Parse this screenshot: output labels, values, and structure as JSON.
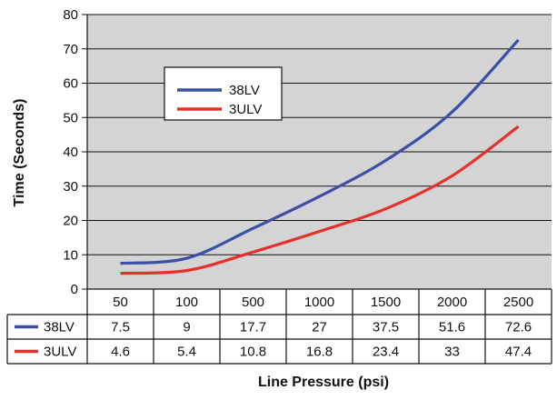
{
  "chart_data": {
    "type": "line",
    "categories": [
      "50",
      "100",
      "500",
      "1000",
      "1500",
      "2000",
      "2500"
    ],
    "series": [
      {
        "name": "38LV",
        "color": "#3a4fa8",
        "values": [
          7.5,
          9,
          17.7,
          27,
          37.5,
          51.6,
          72.6
        ]
      },
      {
        "name": "3ULV",
        "color": "#e8302a",
        "values": [
          4.6,
          5.4,
          10.8,
          16.8,
          23.4,
          33,
          47.4
        ]
      }
    ],
    "title": "",
    "xlabel": "Line Pressure (psi)",
    "ylabel": "Time (Seconds)",
    "ylim": [
      0,
      80
    ],
    "yticks": [
      "0",
      "10",
      "20",
      "30",
      "40",
      "50",
      "60",
      "70",
      "80"
    ],
    "grid": true,
    "plot_background": "#d4d4d4",
    "legend_position": "inside-upper-left",
    "data_table": true
  }
}
